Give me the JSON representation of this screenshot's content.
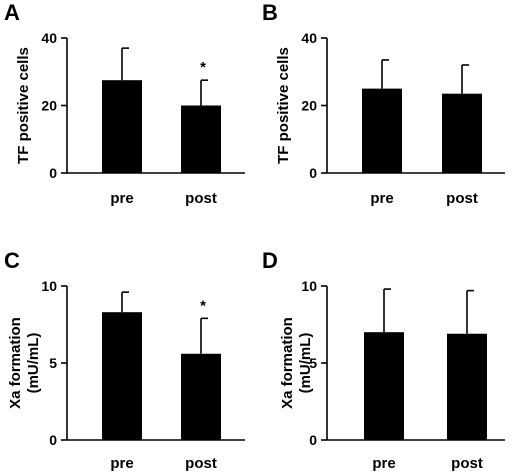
{
  "chart_data": [
    {
      "panel": "A",
      "type": "bar",
      "ylabel": "TF positive cells",
      "ylim": [
        0,
        40
      ],
      "yticks": [
        "0",
        "20",
        "40"
      ],
      "categories": [
        "pre",
        "post"
      ],
      "values": [
        27.5,
        20
      ],
      "error": [
        9.5,
        7.5
      ],
      "annotations": [
        "",
        "*"
      ]
    },
    {
      "panel": "B",
      "type": "bar",
      "ylabel": "TF positive cells",
      "ylim": [
        0,
        40
      ],
      "yticks": [
        "0",
        "20",
        "40"
      ],
      "categories": [
        "pre",
        "post"
      ],
      "values": [
        25,
        23.5
      ],
      "error": [
        8.5,
        8.5
      ],
      "annotations": [
        "",
        ""
      ]
    },
    {
      "panel": "C",
      "type": "bar",
      "ylabel": "Xa formation (mU/mL)",
      "ylabel_lines": [
        "Xa formation",
        "(mU/mL)"
      ],
      "ylim": [
        0,
        10
      ],
      "yticks": [
        "0",
        "5",
        "10"
      ],
      "categories": [
        "pre",
        "post"
      ],
      "values": [
        8.3,
        5.6
      ],
      "error": [
        1.3,
        2.3
      ],
      "annotations": [
        "",
        "*"
      ]
    },
    {
      "panel": "D",
      "type": "bar",
      "ylabel": "Xa formation (mU/mL)",
      "ylabel_lines": [
        "Xa formation",
        "(mU/mL)"
      ],
      "ylim": [
        0,
        10
      ],
      "yticks": [
        "0",
        "5",
        "10"
      ],
      "categories": [
        "pre",
        "post"
      ],
      "values": [
        7.0,
        6.9
      ],
      "error": [
        2.8,
        2.8
      ],
      "annotations": [
        "",
        ""
      ]
    }
  ],
  "colors": {
    "bar": "#000000",
    "axis": "#000000",
    "background": "#ffffff"
  }
}
